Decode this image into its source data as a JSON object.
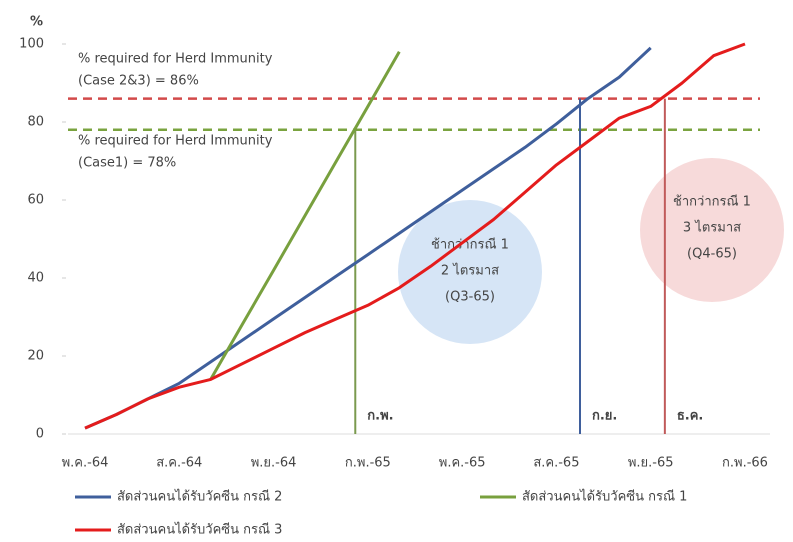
{
  "chart_data": {
    "type": "line",
    "y_label": "%",
    "categories": [
      "พ.ค.-64",
      null,
      null,
      "ส.ค.-64",
      null,
      null,
      "พ.ย.-64",
      null,
      null,
      "ก.พ.-65",
      null,
      null,
      "พ.ค.-65",
      null,
      null,
      "ส.ค.-65",
      null,
      null,
      "พ.ย.-65",
      null,
      null,
      "ก.พ.-66"
    ],
    "series": [
      {
        "name": "สัดส่วนคนได้รับวัคซีน กรณี 2",
        "color": "#3f5f9c",
        "values": [
          1.5,
          5,
          9,
          13,
          18.5,
          24,
          29.5,
          35,
          40.5,
          46,
          51.5,
          57,
          62.5,
          68,
          73.5,
          79.5,
          86,
          91.5,
          99,
          null,
          null,
          null
        ]
      },
      {
        "name": "สัดส่วนคนได้รับวัคซีน กรณี 1",
        "color": "#78a03e",
        "values": [
          null,
          null,
          null,
          null,
          14,
          28,
          42,
          56,
          70,
          84,
          98,
          null,
          null,
          null,
          null,
          null,
          null,
          null,
          null,
          null,
          null,
          null
        ]
      },
      {
        "name": "สัดส่วนคนได้รับวัคซีน กรณี 3",
        "color": "#e41c1c",
        "values": [
          1.5,
          5,
          9,
          12,
          14,
          18,
          22,
          26,
          29.5,
          33,
          37.5,
          43,
          49,
          55,
          62,
          69,
          75,
          81,
          84,
          90,
          97,
          100
        ]
      }
    ],
    "ylim": [
      0,
      100
    ],
    "yticks": [
      0,
      20,
      40,
      60,
      80,
      100
    ],
    "grid": false,
    "reference_lines": [
      {
        "value": 86,
        "color": "#d24a4a",
        "label_lines": [
          "% required for Herd Immunity",
          "(Case 2&3) = 86%"
        ]
      },
      {
        "value": 78,
        "color": "#7aa33f",
        "label_lines": [
          "% required for Herd Immunity",
          "(Case1) = 78%"
        ]
      }
    ],
    "markers": [
      {
        "label": "ก.พ.",
        "x": 8.6,
        "top": 78,
        "color": "#7a9a4e"
      },
      {
        "label": "ก.ย.",
        "x": 15.75,
        "top": 86,
        "color": "#3f5f9c"
      },
      {
        "label": "ธ.ค.",
        "x": 18.45,
        "top": 86,
        "color": "#c05a5a"
      }
    ],
    "callouts": [
      {
        "lines": [
          "ช้ากว่ากรณี 1",
          "2 ไตรมาส",
          "(Q3-65)"
        ],
        "color": "#3f5f9c"
      },
      {
        "lines": [
          "ช้ากว่ากรณี 1",
          "3 ไตรมาส",
          "(Q4-65)"
        ],
        "color": "#c0392b"
      }
    ]
  }
}
